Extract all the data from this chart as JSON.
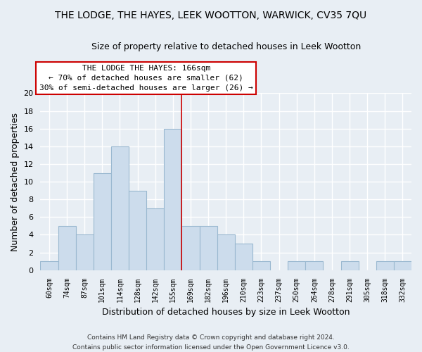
{
  "title": "THE LODGE, THE HAYES, LEEK WOOTTON, WARWICK, CV35 7QU",
  "subtitle": "Size of property relative to detached houses in Leek Wootton",
  "xlabel": "Distribution of detached houses by size in Leek Wootton",
  "ylabel": "Number of detached properties",
  "bin_labels": [
    "60sqm",
    "74sqm",
    "87sqm",
    "101sqm",
    "114sqm",
    "128sqm",
    "142sqm",
    "155sqm",
    "169sqm",
    "182sqm",
    "196sqm",
    "210sqm",
    "223sqm",
    "237sqm",
    "250sqm",
    "264sqm",
    "278sqm",
    "291sqm",
    "305sqm",
    "318sqm",
    "332sqm"
  ],
  "bar_heights": [
    1,
    5,
    4,
    11,
    14,
    9,
    7,
    16,
    5,
    5,
    4,
    3,
    1,
    0,
    1,
    1,
    0,
    1,
    0,
    1,
    1
  ],
  "bar_color": "#ccdcec",
  "bar_edge_color": "#9ab8d0",
  "marker_label": "THE LODGE THE HAYES: 166sqm",
  "annotation_line1": "← 70% of detached houses are smaller (62)",
  "annotation_line2": "30% of semi-detached houses are larger (26) →",
  "annotation_box_color": "#ffffff",
  "annotation_box_edge": "#cc0000",
  "marker_line_color": "#cc0000",
  "ylim": [
    0,
    20
  ],
  "yticks": [
    0,
    2,
    4,
    6,
    8,
    10,
    12,
    14,
    16,
    18,
    20
  ],
  "footer_line1": "Contains HM Land Registry data © Crown copyright and database right 2024.",
  "footer_line2": "Contains public sector information licensed under the Open Government Licence v3.0.",
  "background_color": "#e8eef4",
  "grid_color": "#ffffff"
}
